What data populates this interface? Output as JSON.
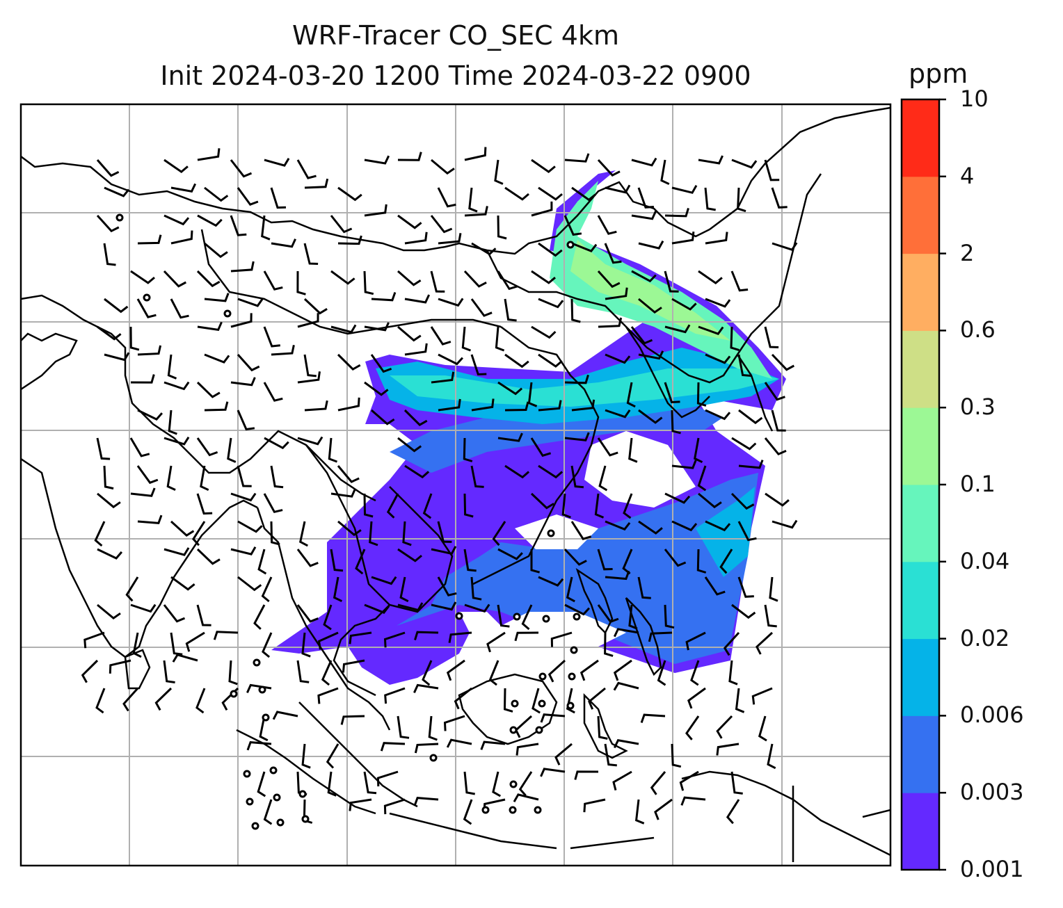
{
  "title": {
    "line1": "WRF-Tracer CO_SEC 4km",
    "line2": "Init 2024-03-20 1200 Time 2024-03-22 0900"
  },
  "colorbar": {
    "unit": "ppm",
    "levels": [
      "0.001",
      "0.003",
      "0.006",
      "0.02",
      "0.04",
      "0.1",
      "0.3",
      "0.6",
      "2",
      "4",
      "10"
    ],
    "colors": [
      "#6429ff",
      "#3571f1",
      "#05b3e8",
      "#2ae0d4",
      "#66f5bc",
      "#9cf895",
      "#cedf86",
      "#ffae61",
      "#ff6f39",
      "#ff2b18"
    ]
  },
  "map": {
    "region": "East and Southeast Asia",
    "gridlines": true,
    "coastline_color": "#000000",
    "gridline_color": "#b0b0b0",
    "wind_barbs": true
  }
}
